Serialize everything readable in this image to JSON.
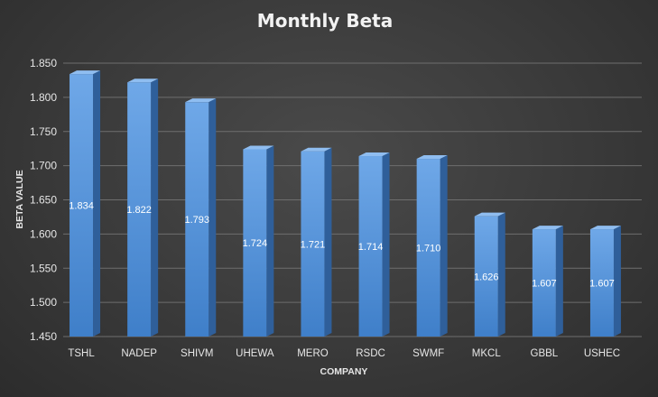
{
  "chart_data": {
    "type": "bar",
    "title": "Monthly Beta",
    "xlabel": "COMPANY",
    "ylabel": "BETA VALUE",
    "categories": [
      "TSHL",
      "NADEP",
      "SHIVM",
      "UHEWA",
      "MERO",
      "RSDC",
      "SWMF",
      "MKCL",
      "GBBL",
      "USHEC"
    ],
    "values": [
      1.834,
      1.822,
      1.793,
      1.724,
      1.721,
      1.714,
      1.71,
      1.626,
      1.607,
      1.607
    ],
    "data_labels": [
      "1.834",
      "1.822",
      "1.793",
      "1.724",
      "1.721",
      "1.714",
      "1.710",
      "1.626",
      "1.607",
      "1.607"
    ],
    "yticks": [
      "1.450",
      "1.500",
      "1.550",
      "1.600",
      "1.650",
      "1.700",
      "1.750",
      "1.800",
      "1.850"
    ],
    "ylim": [
      1.45,
      1.85
    ],
    "grid": true,
    "legend": "none",
    "colors": {
      "bar_front_top": "#6fa8e8",
      "bar_front_bottom": "#3f7fc9",
      "bar_side": "#2f5f9a",
      "bar_top": "#8fbdf0",
      "grid": "#6e6e6e",
      "text": "#e6e6e6"
    }
  }
}
